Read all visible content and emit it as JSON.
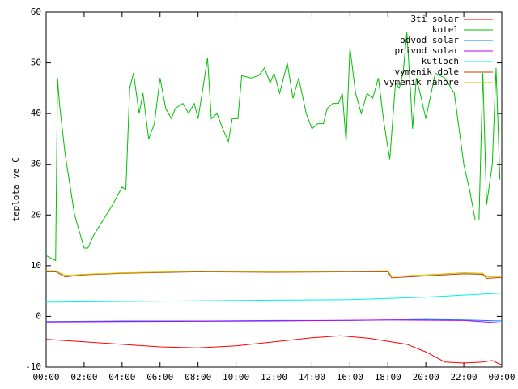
{
  "chart_data": {
    "type": "line",
    "y_label": "teplota ve C",
    "xlim": [
      0,
      24
    ],
    "ylim": [
      -10,
      60
    ],
    "xticks": [
      {
        "value": 0,
        "label": "00:00"
      },
      {
        "value": 2,
        "label": "02:00"
      },
      {
        "value": 4,
        "label": "04:00"
      },
      {
        "value": 6,
        "label": "06:00"
      },
      {
        "value": 8,
        "label": "08:00"
      },
      {
        "value": 10,
        "label": "10:00"
      },
      {
        "value": 12,
        "label": "12:00"
      },
      {
        "value": 14,
        "label": "14:00"
      },
      {
        "value": 16,
        "label": "16:00"
      },
      {
        "value": 18,
        "label": "18:00"
      },
      {
        "value": 20,
        "label": "20:00"
      },
      {
        "value": 22,
        "label": "22:00"
      },
      {
        "value": 24,
        "label": "00:00"
      }
    ],
    "yticks": [
      -10,
      0,
      10,
      20,
      30,
      40,
      50,
      60
    ],
    "grid": false,
    "legend": "top-right",
    "series": [
      {
        "name": "3ti solar",
        "color": "#ff0000",
        "x": [
          0,
          2,
          4,
          6,
          8,
          10,
          12,
          14,
          15.5,
          17,
          19,
          20,
          21,
          22,
          23,
          23.5,
          24
        ],
        "values": [
          -4.5,
          -5,
          -5.5,
          -6,
          -6.2,
          -5.8,
          -5,
          -4.2,
          -3.8,
          -4.3,
          -5.5,
          -7,
          -9,
          -9.2,
          -9,
          -8.7,
          -9.6
        ]
      },
      {
        "name": "kotel",
        "color": "#00c000",
        "x": [
          0,
          0.5,
          0.6,
          0.7,
          1,
          1.5,
          2,
          2.2,
          2.5,
          3,
          3.5,
          4,
          4.2,
          4.4,
          4.6,
          4.9,
          5.1,
          5.4,
          5.7,
          6,
          6.3,
          6.6,
          6.8,
          7.2,
          7.5,
          7.8,
          8,
          8.3,
          8.5,
          8.7,
          9,
          9.3,
          9.6,
          9.8,
          10.1,
          10.3,
          10.8,
          11.2,
          11.5,
          11.8,
          12,
          12.3,
          12.7,
          13,
          13.3,
          13.7,
          14,
          14.3,
          14.6,
          14.8,
          15.1,
          15.4,
          15.6,
          15.8,
          16,
          16.3,
          16.6,
          16.9,
          17.2,
          17.5,
          17.8,
          18.1,
          18.4,
          18.6,
          18.8,
          19,
          19.2,
          19.3,
          19.5,
          19.7,
          20,
          20.5,
          21,
          21.5,
          22,
          22.3,
          22.6,
          22.8,
          23,
          23.2,
          23.5,
          23.7,
          23.9
        ],
        "values": [
          12,
          11,
          47,
          42,
          32,
          20,
          13.5,
          13.5,
          16,
          19,
          22,
          25.5,
          25,
          45,
          48,
          40,
          44,
          35,
          38,
          47,
          41,
          39,
          41,
          42,
          40,
          42,
          39,
          46,
          51,
          39,
          40,
          37,
          34.5,
          39,
          39,
          47.5,
          47,
          47.5,
          49,
          46,
          48,
          44,
          50,
          43,
          47,
          40,
          37,
          38,
          38,
          41,
          42,
          42,
          44,
          34.5,
          53,
          44,
          40,
          44,
          43,
          47,
          38,
          31,
          46,
          45,
          48,
          56,
          44,
          37,
          47,
          44,
          39,
          48,
          47,
          44,
          30,
          25,
          19,
          19,
          48,
          22,
          30,
          49,
          27
        ]
      },
      {
        "name": "odvod solar",
        "color": "#0080ff",
        "x": [
          0,
          4,
          8,
          12,
          16,
          20,
          22,
          24
        ],
        "values": [
          -1,
          -0.9,
          -0.9,
          -0.8,
          -0.8,
          -0.6,
          -0.7,
          -0.9
        ]
      },
      {
        "name": "privod solar",
        "color": "#c000ff",
        "x": [
          0,
          4,
          12,
          18,
          22,
          24
        ],
        "values": [
          -1.1,
          -1,
          -0.9,
          -0.7,
          -0.8,
          -1.3
        ]
      },
      {
        "name": "kutloch",
        "color": "#00eeee",
        "x": [
          0,
          6,
          12,
          16,
          20,
          24
        ],
        "values": [
          2.8,
          3,
          3.2,
          3.3,
          3.8,
          4.6
        ]
      },
      {
        "name": "vymenik dole",
        "color": "#c04000",
        "x": [
          0,
          0.5,
          1,
          2,
          4,
          8,
          12,
          16,
          18,
          18.2,
          20,
          22,
          23,
          23.2,
          24
        ],
        "values": [
          8.8,
          8.8,
          7.8,
          8.2,
          8.5,
          8.8,
          8.7,
          8.8,
          8.8,
          7.6,
          8,
          8.4,
          8.3,
          7.5,
          7.7
        ]
      },
      {
        "name": "vymenik nahore",
        "color": "#c8c800",
        "x": [
          0,
          0.5,
          1,
          2,
          4,
          8,
          12,
          16,
          18,
          18.2,
          20,
          22,
          23,
          23.2,
          24
        ],
        "values": [
          9,
          9,
          8.1,
          8.3,
          8.6,
          8.9,
          8.8,
          8.9,
          9,
          7.9,
          8.2,
          8.6,
          8.5,
          7.8,
          7.9
        ]
      }
    ]
  }
}
